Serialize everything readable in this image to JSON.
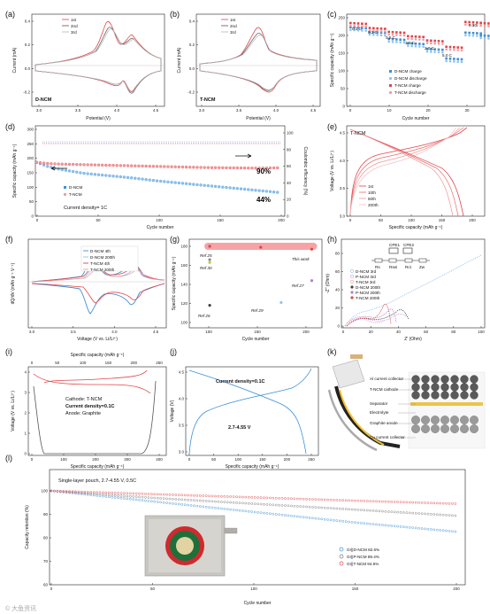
{
  "figure": {
    "panel_labels": [
      "(a)",
      "(b)",
      "(c)",
      "(d)",
      "(e)",
      "(f)",
      "(g)",
      "(h)",
      "(i)",
      "(j)",
      "(k)",
      "(l)"
    ],
    "watermark": "© 大鱼资讯"
  },
  "colors": {
    "red": "#e0454a",
    "blue": "#3b8fd6",
    "lred": "#f19a9c",
    "lblue": "#8fc3ee",
    "gray": "#8a8a8a",
    "dark": "#444444",
    "purple": "#b07fd9",
    "olive": "#c6c64a"
  },
  "chart_data": [
    {
      "id": "a",
      "type": "line",
      "panel_text": "D-NCM",
      "xlabel": "Potential (V)",
      "ylabel": "Current (mA)",
      "xticks": [
        "3.0",
        "3.5",
        "4.0",
        "4.5"
      ],
      "yticks": [
        "-0.2",
        "0.0",
        "0.2",
        "0.4"
      ],
      "legend": [
        "1st",
        "2nd",
        "3rd"
      ]
    },
    {
      "id": "b",
      "type": "line",
      "panel_text": "T-NCM",
      "xlabel": "Potential (V)",
      "ylabel": "Current (mA)",
      "xticks": [
        "3.0",
        "3.5",
        "4.0",
        "4.5"
      ],
      "yticks": [
        "-0.2",
        "0.0",
        "0.2",
        "0.4"
      ],
      "legend": [
        "1st",
        "2nd",
        "3rd"
      ]
    },
    {
      "id": "c",
      "type": "scatter",
      "xlabel": "Cycle number",
      "ylabel": "Specific capacity (mAh g⁻¹)",
      "xticks": [
        "0",
        "10",
        "20",
        "30"
      ],
      "yticks": [
        "0",
        "50",
        "100",
        "150",
        "200",
        "250"
      ],
      "rate_labels": [
        "0.1 C",
        "0.2 C",
        "0.5 C",
        "1.0 C",
        "2.0 C",
        "5.0 C",
        "0.1C"
      ],
      "legend": [
        "D-NCM charge",
        "D-NCM discharge",
        "T-NCM charge",
        "T-NCM discharge"
      ],
      "series": [
        {
          "name": "D-NCM charge",
          "x": [
            1,
            6,
            11,
            16,
            21,
            26,
            31,
            35
          ],
          "y": [
            223,
            210,
            190,
            178,
            162,
            135,
            208,
            200
          ]
        },
        {
          "name": "T-NCM charge",
          "x": [
            1,
            6,
            11,
            16,
            21,
            26,
            31,
            35
          ],
          "y": [
            235,
            221,
            210,
            198,
            186,
            168,
            238,
            235
          ]
        }
      ]
    },
    {
      "id": "d",
      "type": "scatter",
      "xlabel": "Cycle number",
      "ylabel": "Specific capacity (mAh g⁻¹)",
      "ylabel2": "Coulombic efficiency (%)",
      "xticks": [
        "0",
        "50",
        "100",
        "150",
        "200"
      ],
      "yticks": [
        "0",
        "50",
        "100",
        "150",
        "200",
        "250",
        "300"
      ],
      "yticks2": [
        "0",
        "20",
        "40",
        "60",
        "80",
        "100"
      ],
      "legend": [
        "D-NCM",
        "T-NCM"
      ],
      "annotations": [
        "90%",
        "44%"
      ],
      "density": "Current density= 1C",
      "series": [
        {
          "name": "D-NCM",
          "x": [
            1,
            10,
            20,
            40,
            60,
            80,
            100,
            120,
            140,
            160,
            180,
            200
          ],
          "y": [
            186,
            172,
            162,
            148,
            140,
            132,
            122,
            114,
            106,
            98,
            90,
            82
          ]
        },
        {
          "name": "T-NCM",
          "x": [
            1,
            10,
            20,
            40,
            60,
            80,
            100,
            120,
            140,
            160,
            180,
            200
          ],
          "y": [
            186,
            182,
            180,
            178,
            176,
            174,
            172,
            170,
            168,
            167,
            166,
            167
          ]
        }
      ]
    },
    {
      "id": "e",
      "type": "line",
      "panel_text": "T-NCM",
      "xlabel": "Specific capacity (mAh g⁻¹)",
      "ylabel": "Voltage (V vs. Li/Li⁺)",
      "xticks": [
        "0",
        "50",
        "100",
        "150",
        "200"
      ],
      "yticks": [
        "3.0",
        "3.5",
        "4.0",
        "4.5"
      ],
      "legend": [
        "1st",
        "10th",
        "50th",
        "200th"
      ]
    },
    {
      "id": "f",
      "type": "line",
      "xlabel": "Voltage (V vs. Li/Li⁺)",
      "ylabel": "dQ/dV (mAh g⁻¹ V⁻¹)",
      "xticks": [
        "3.0",
        "3.5",
        "4.0",
        "4.5"
      ],
      "legend": [
        "D-NCM 4th",
        "D-NCM 200th",
        "T-NCM 4th",
        "T-NCM 200th"
      ]
    },
    {
      "id": "g",
      "type": "scatter",
      "xlabel": "Cycle number",
      "ylabel": "Specific capacity (mAh g⁻¹)",
      "xticks": [
        "100",
        "150",
        "200"
      ],
      "yticks": [
        "100",
        "120",
        "140",
        "160",
        "180"
      ],
      "labels": [
        "Ref 25",
        "Ref 30",
        "Ref 27",
        "Ref 29",
        "Ref 26",
        "This work"
      ],
      "points": [
        {
          "x": 100,
          "y": 166
        },
        {
          "x": 100,
          "y": 163
        },
        {
          "x": 200,
          "y": 144
        },
        {
          "x": 170,
          "y": 121
        },
        {
          "x": 100,
          "y": 118
        }
      ],
      "this_work": {
        "x": [
          100,
          150,
          200
        ],
        "y": [
          180,
          179,
          177
        ]
      }
    },
    {
      "id": "h",
      "type": "scatter",
      "xlabel": "Z' (Ohm)",
      "ylabel": "-Z'' (Ohm)",
      "xticks": [
        "0",
        "20",
        "40",
        "60",
        "80",
        "100"
      ],
      "yticks": [
        "0",
        "20",
        "40",
        "60",
        "80"
      ],
      "legend": [
        "D-NCM 3rd",
        "P-NCM 3rd",
        "T-NCM 3rd",
        "D-NCM 200th",
        "P-NCM 200th",
        "T-NCM 200th"
      ],
      "circuit_labels": [
        "CPE1",
        "CPE2",
        "Rs",
        "Rsei",
        "Rct",
        "Zw"
      ]
    },
    {
      "id": "i",
      "type": "line",
      "xlabel": "Specific capacity (mAh g⁻¹)",
      "top_xlabel": "Specific capacity (mAh g⁻¹)",
      "ylabel": "Voltage (V vs. Li/Li⁺)",
      "xticks": [
        "0",
        "100",
        "200",
        "300",
        "400"
      ],
      "top_xticks": [
        "0",
        "50",
        "100",
        "150",
        "200",
        "250"
      ],
      "yticks": [
        "0",
        "1",
        "2",
        "3",
        "4"
      ],
      "annotations": [
        "Cathode: T-NCM",
        "Current density=0.1C",
        "Anode: Graphite"
      ]
    },
    {
      "id": "j",
      "type": "line",
      "xlabel": "Specific capacity (mAh g⁻¹)",
      "ylabel": "Voltage (V)",
      "xticks": [
        "0",
        "50",
        "100",
        "150",
        "200",
        "250"
      ],
      "yticks": [
        "3.0",
        "3.5",
        "4.0",
        "4.5"
      ],
      "annotations": [
        "Current density=0.1C",
        "2.7-4.55 V"
      ]
    },
    {
      "id": "k",
      "type": "diagram",
      "labels": [
        "Al current collector",
        "T-NCM cathode",
        "Separator",
        "Electrolyte",
        "Graphite anode",
        "Cu current collector"
      ]
    },
    {
      "id": "l",
      "type": "line",
      "title": "Single-layer pouch, 2.7-4.55 V, 0.5C",
      "xlabel": "Cycle number",
      "ylabel": "Capacity retention (%)",
      "xticks": [
        "0",
        "50",
        "100",
        "150",
        "200"
      ],
      "yticks": [
        "60",
        "70",
        "80",
        "90",
        "100"
      ],
      "series": [
        {
          "name": "Gr||D-NCM 82.6%",
          "x": [
            0,
            50,
            100,
            150,
            200
          ],
          "y": [
            100,
            95.5,
            91,
            86.5,
            82.6
          ]
        },
        {
          "name": "Gr||P-NCM 89.4%",
          "x": [
            0,
            50,
            100,
            150,
            200
          ],
          "y": [
            100,
            97,
            94.5,
            92,
            89.4
          ]
        },
        {
          "name": "Gr||T-NCM 94.5%",
          "x": [
            0,
            50,
            100,
            150,
            200
          ],
          "y": [
            100,
            98.6,
            97.2,
            95.8,
            94.5
          ]
        }
      ]
    }
  ]
}
